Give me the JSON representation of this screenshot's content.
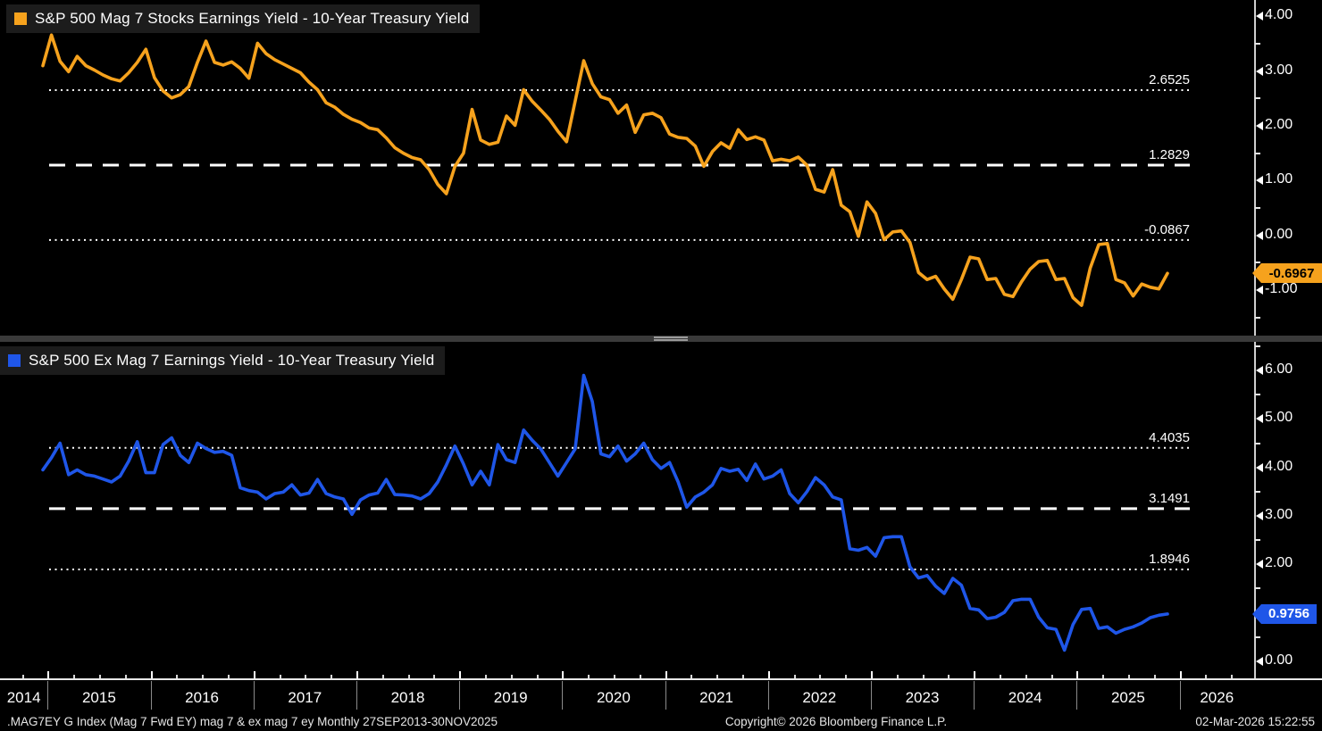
{
  "legends": {
    "top": {
      "label": "S&P 500 Mag 7 Stocks Earnings Yield - 10-Year Treasury Yield",
      "color": "#f6a21d"
    },
    "bottom": {
      "label": "S&P 500 Ex Mag 7 Earnings Yield - 10-Year Treasury Yield",
      "color": "#1f56e8"
    }
  },
  "status_bar": {
    "left": ".MAG7EY G Index (Mag 7 Fwd EY) mag 7 & ex mag 7 ey Monthly 27SEP2013-30NOV2025",
    "center": "Copyright© 2026 Bloomberg Finance L.P.",
    "right": "02-Mar-2026 15:22:55"
  },
  "x_axis": {
    "year_labels": [
      "2014",
      "2015",
      "2016",
      "2017",
      "2018",
      "2019",
      "2020",
      "2021",
      "2022",
      "2023",
      "2024",
      "2025",
      "2026"
    ]
  },
  "chart_data": [
    {
      "type": "line",
      "panel": "top",
      "title": "S&P 500 Mag 7 Stocks Earnings Yield - 10-Year Treasury Yield",
      "color": "#f6a21d",
      "frequency": "Monthly",
      "x_start": "2014-12",
      "x_end": "2025-11",
      "ylim": [
        -1.85,
        4.3
      ],
      "grid": false,
      "legend_position": "top-left",
      "y_ticks": [
        {
          "v": 4,
          "label": "4.00"
        },
        {
          "v": 3,
          "label": "3.00"
        },
        {
          "v": 2,
          "label": "2.00"
        },
        {
          "v": 1,
          "label": "1.00"
        },
        {
          "v": 0,
          "label": "0.00"
        },
        {
          "v": -1,
          "label": "-1.00"
        }
      ],
      "y_minor_ticks": [
        3.5,
        2.5,
        1.5,
        0.5,
        -0.5,
        -1.5
      ],
      "reference_lines": [
        {
          "value": 2.6525,
          "label": "2.6525",
          "style": "dotted"
        },
        {
          "value": 1.2829,
          "label": "1.2829",
          "style": "dashed"
        },
        {
          "value": -0.0867,
          "label": "-0.0867",
          "style": "dotted"
        }
      ],
      "last_value": {
        "label": "-0.6967",
        "value": -0.6967
      },
      "values": [
        3.1,
        3.66,
        3.18,
        2.99,
        3.27,
        3.1,
        3.02,
        2.93,
        2.86,
        2.82,
        2.97,
        3.16,
        3.4,
        2.88,
        2.64,
        2.51,
        2.57,
        2.72,
        3.16,
        3.55,
        3.16,
        3.11,
        3.17,
        3.05,
        2.87,
        3.51,
        3.32,
        3.21,
        3.13,
        3.05,
        2.97,
        2.8,
        2.66,
        2.42,
        2.34,
        2.21,
        2.12,
        2.06,
        1.96,
        1.93,
        1.78,
        1.6,
        1.5,
        1.42,
        1.38,
        1.2,
        0.93,
        0.76,
        1.26,
        1.5,
        2.3,
        1.74,
        1.66,
        1.7,
        2.18,
        2.01,
        2.66,
        2.45,
        2.29,
        2.12,
        1.9,
        1.71,
        2.45,
        3.19,
        2.77,
        2.53,
        2.48,
        2.23,
        2.38,
        1.88,
        2.2,
        2.23,
        2.15,
        1.85,
        1.79,
        1.77,
        1.63,
        1.26,
        1.53,
        1.69,
        1.59,
        1.93,
        1.75,
        1.8,
        1.74,
        1.36,
        1.39,
        1.36,
        1.43,
        1.28,
        0.84,
        0.79,
        1.2,
        0.55,
        0.43,
        -0.02,
        0.61,
        0.4,
        -0.08,
        0.06,
        0.08,
        -0.13,
        -0.68,
        -0.81,
        -0.75,
        -0.98,
        -1.17,
        -0.81,
        -0.4,
        -0.43,
        -0.81,
        -0.79,
        -1.08,
        -1.12,
        -0.85,
        -0.62,
        -0.48,
        -0.46,
        -0.81,
        -0.79,
        -1.14,
        -1.28,
        -0.6,
        -0.17,
        -0.15,
        -0.81,
        -0.87,
        -1.11,
        -0.89,
        -0.95,
        -0.98,
        -0.697
      ]
    },
    {
      "type": "line",
      "panel": "bottom",
      "title": "S&P 500 Ex Mag 7 Earnings Yield - 10-Year Treasury Yield",
      "color": "#1f56e8",
      "frequency": "Monthly",
      "x_start": "2014-12",
      "x_end": "2025-11",
      "ylim": [
        -0.37,
        6.59
      ],
      "grid": false,
      "legend_position": "top-left",
      "y_ticks": [
        {
          "v": 6,
          "label": "6.00"
        },
        {
          "v": 5,
          "label": "5.00"
        },
        {
          "v": 4,
          "label": "4.00"
        },
        {
          "v": 3,
          "label": "3.00"
        },
        {
          "v": 2,
          "label": "2.00"
        },
        {
          "v": 1,
          "label": "1.00"
        },
        {
          "v": 0,
          "label": "0.00"
        }
      ],
      "y_minor_ticks": [
        6.5,
        5.5,
        4.5,
        3.5,
        2.5,
        1.5,
        0.5
      ],
      "reference_lines": [
        {
          "value": 4.4035,
          "label": "4.4035",
          "style": "dotted"
        },
        {
          "value": 3.1491,
          "label": "3.1491",
          "style": "dashed"
        },
        {
          "value": 1.8946,
          "label": "1.8946",
          "style": "dotted"
        }
      ],
      "last_value": {
        "label": "0.9756",
        "value": 0.9756
      },
      "values": [
        3.95,
        4.2,
        4.5,
        3.85,
        3.95,
        3.85,
        3.82,
        3.76,
        3.7,
        3.82,
        4.13,
        4.53,
        3.89,
        3.89,
        4.47,
        4.61,
        4.25,
        4.1,
        4.5,
        4.39,
        4.31,
        4.33,
        4.25,
        3.58,
        3.52,
        3.49,
        3.35,
        3.46,
        3.49,
        3.64,
        3.43,
        3.47,
        3.75,
        3.46,
        3.39,
        3.35,
        3.03,
        3.33,
        3.43,
        3.47,
        3.75,
        3.44,
        3.43,
        3.41,
        3.35,
        3.46,
        3.7,
        4.05,
        4.44,
        4.07,
        3.64,
        3.92,
        3.64,
        4.47,
        4.16,
        4.1,
        4.77,
        4.56,
        4.38,
        4.1,
        3.82,
        4.1,
        4.38,
        5.9,
        5.36,
        4.28,
        4.22,
        4.44,
        4.13,
        4.28,
        4.5,
        4.16,
        3.98,
        4.1,
        3.7,
        3.18,
        3.39,
        3.49,
        3.64,
        3.98,
        3.92,
        3.96,
        3.73,
        4.07,
        3.76,
        3.82,
        3.95,
        3.46,
        3.27,
        3.5,
        3.79,
        3.64,
        3.39,
        3.33,
        2.32,
        2.29,
        2.35,
        2.17,
        2.55,
        2.57,
        2.57,
        1.95,
        1.72,
        1.77,
        1.55,
        1.4,
        1.71,
        1.57,
        1.09,
        1.06,
        0.88,
        0.91,
        1.01,
        1.25,
        1.28,
        1.28,
        0.91,
        0.69,
        0.66,
        0.23,
        0.76,
        1.07,
        1.09,
        0.68,
        0.71,
        0.58,
        0.66,
        0.71,
        0.79,
        0.9,
        0.95,
        0.976
      ]
    }
  ]
}
